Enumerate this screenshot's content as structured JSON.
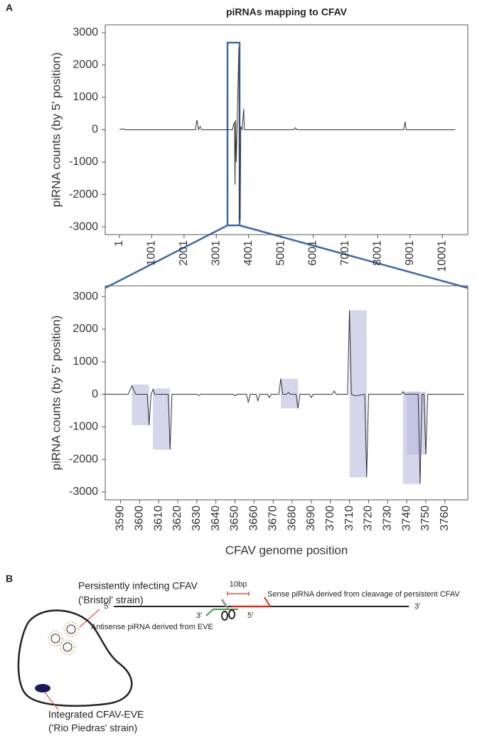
{
  "panel_labels": {
    "a": "A",
    "b": "B"
  },
  "chart_data": [
    {
      "type": "line",
      "title": "piRNAs mapping to CFAV",
      "y_label": "piRNA counts (by 5' position)",
      "x": [
        1,
        100,
        200,
        2350,
        2400,
        2450,
        2500,
        2550,
        3500,
        3560,
        3580,
        3600,
        3620,
        3650,
        3700,
        3720,
        3740,
        3760,
        3800,
        3850,
        3870,
        5400,
        5450,
        5500,
        8800,
        8850,
        8880,
        10400
      ],
      "values": [
        0,
        30,
        0,
        0,
        300,
        0,
        100,
        0,
        0,
        250,
        -1700,
        300,
        -1000,
        400,
        2550,
        -2800,
        -2750,
        100,
        0,
        650,
        0,
        0,
        60,
        0,
        0,
        250,
        0,
        0
      ],
      "color": "#333333",
      "xlim": [
        -440,
        10790
      ],
      "ylim": [
        -3240,
        3240
      ],
      "xticks": [
        1,
        1001,
        2001,
        3001,
        4001,
        5001,
        6001,
        7001,
        8001,
        9001,
        10001
      ],
      "yticks": [
        -3000,
        -2000,
        -1000,
        0,
        1000,
        2000,
        3000
      ]
    },
    {
      "type": "line",
      "y_label": "piRNA counts (by 5' position)",
      "x_label": "CFAV genome position",
      "x": [
        3582,
        3594,
        3596,
        3598,
        3604,
        3605,
        3606,
        3607,
        3608,
        3615,
        3616,
        3617,
        3630,
        3631,
        3632,
        3649,
        3650,
        3651,
        3656,
        3657,
        3658,
        3661,
        3662,
        3663,
        3667,
        3668,
        3669,
        3673,
        3674,
        3675,
        3677,
        3678,
        3679,
        3682,
        3683,
        3684,
        3689,
        3690,
        3691,
        3701,
        3702,
        3703,
        3709,
        3710,
        3711,
        3713,
        3718,
        3719,
        3720,
        3737,
        3738,
        3739,
        3746,
        3747,
        3748,
        3749,
        3750,
        3751,
        3770
      ],
      "values": [
        0,
        0,
        260,
        0,
        0,
        -950,
        0,
        150,
        0,
        0,
        -1700,
        0,
        0,
        -40,
        0,
        0,
        -50,
        0,
        0,
        -250,
        0,
        0,
        -200,
        0,
        0,
        -100,
        0,
        0,
        480,
        0,
        0,
        60,
        0,
        0,
        -430,
        0,
        0,
        -100,
        0,
        0,
        100,
        0,
        0,
        2580,
        0,
        -50,
        0,
        -2550,
        0,
        0,
        80,
        0,
        0,
        -2750,
        0,
        0,
        -1850,
        0,
        0
      ],
      "color": "#333333",
      "highlights": [
        {
          "x": [
            3596,
            3605
          ],
          "y": [
            -950,
            300
          ]
        },
        {
          "x": [
            3607,
            3616
          ],
          "y": [
            -1700,
            180
          ]
        },
        {
          "x": [
            3674,
            3683
          ],
          "y": [
            -430,
            480
          ]
        },
        {
          "x": [
            3710,
            3719
          ],
          "y": [
            -2550,
            2580
          ]
        },
        {
          "x": [
            3738,
            3747
          ],
          "y": [
            -2750,
            80
          ]
        },
        {
          "x": [
            3740,
            3750
          ],
          "y": [
            -1850,
            80
          ]
        }
      ],
      "highlight_color": "#b9b9e0",
      "xlim": [
        3582,
        3772
      ],
      "ylim": [
        -3240,
        3330
      ],
      "xticks": [
        3590,
        3600,
        3610,
        3620,
        3630,
        3640,
        3650,
        3660,
        3670,
        3680,
        3690,
        3700,
        3710,
        3720,
        3730,
        3740,
        3750,
        3760
      ],
      "yticks": [
        -3000,
        -2000,
        -1000,
        0,
        1000,
        2000,
        3000
      ]
    }
  ],
  "diagram": {
    "virus_label": "Persistently infecting CFAV",
    "virus_strain": "('Bristol' strain)",
    "eve_label": "Integrated CFAV-EVE",
    "eve_strain": "('Rio Piedras' strain)",
    "scale": "10bp",
    "sense_label": "Sense piRNA derived from cleavage of persistent CFAV",
    "antisense_label": "Antisense piRNA derived from EVE",
    "genome_5": "5'",
    "genome_3": "3'",
    "antisense_3": "3'",
    "antisense_5": "5'"
  }
}
